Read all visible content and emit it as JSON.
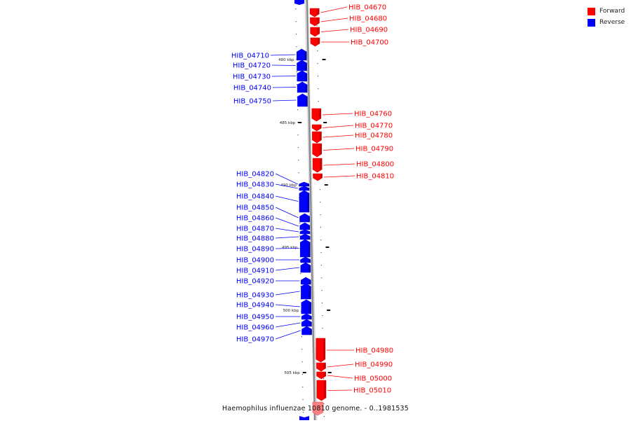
{
  "legend": {
    "items": [
      {
        "label": "Forward",
        "color": "#ff0000"
      },
      {
        "label": "Reverse",
        "color": "#0000ff"
      }
    ]
  },
  "caption": "Haemophilus influenzae 10810 genome. - 0..1981535",
  "colors": {
    "forward": "#ff0000",
    "reverse": "#0000ff",
    "backbone": "#888888"
  },
  "ruler_ticks": [
    "480 kbp",
    "485 kbp",
    "490 kbp",
    "495 kbp",
    "500 kbp",
    "505 kbp"
  ],
  "forward_genes": [
    "HIB_04670",
    "HIB_04680",
    "HIB_04690",
    "HIB_04700",
    "HIB_04760",
    "HIB_04770",
    "HIB_04780",
    "HIB_04790",
    "HIB_04800",
    "HIB_04810",
    "HIB_04980",
    "HIB_04990",
    "HIB_05000",
    "HIB_05010"
  ],
  "reverse_genes": [
    "HIB_04710",
    "HIB_04720",
    "HIB_04730",
    "HIB_04740",
    "HIB_04750",
    "HIB_04820",
    "HIB_04830",
    "HIB_04840",
    "HIB_04850",
    "HIB_04860",
    "HIB_04870",
    "HIB_04880",
    "HIB_04890",
    "HIB_04900",
    "HIB_04910",
    "HIB_04920",
    "HIB_04930",
    "HIB_04940",
    "HIB_04950",
    "HIB_04960",
    "HIB_04970"
  ]
}
